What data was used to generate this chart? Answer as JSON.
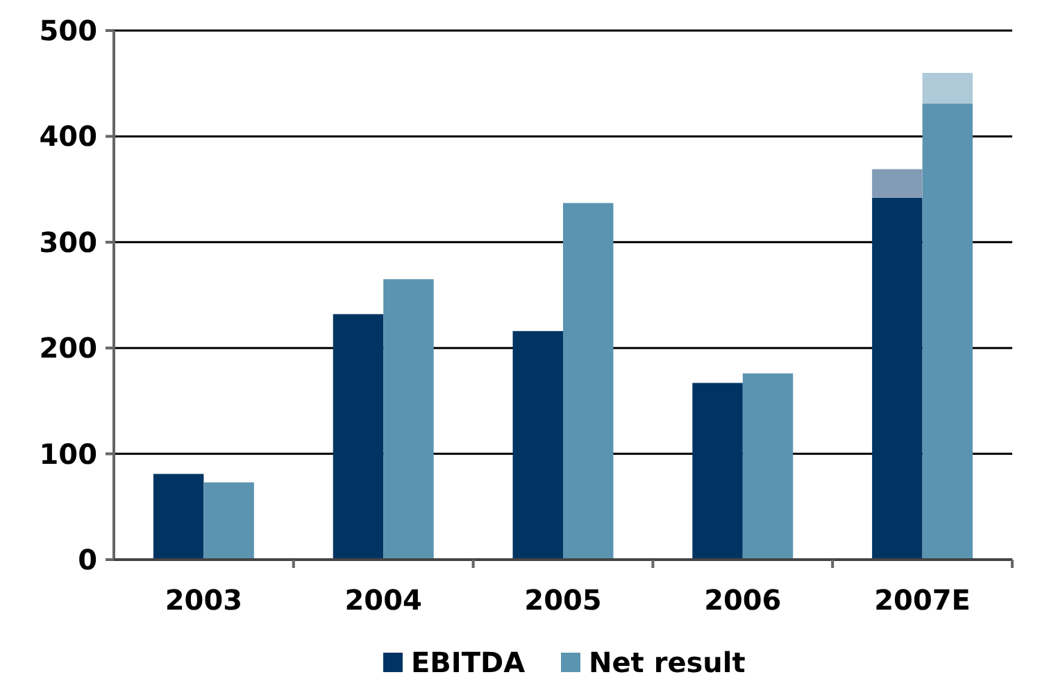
{
  "chart_data": {
    "type": "bar",
    "categories": [
      "2003",
      "2004",
      "2005",
      "2006",
      "2007E"
    ],
    "series": [
      {
        "name": "EBITDA",
        "color": "#003462",
        "values": [
          81,
          232,
          216,
          167,
          342
        ]
      },
      {
        "name": "Net result",
        "color": "#5b94b0",
        "values": [
          73,
          265,
          337,
          176,
          431
        ]
      },
      {
        "color": "#829bb6",
        "values": [
          null,
          null,
          null,
          null,
          27
        ],
        "base": [
          null,
          null,
          null,
          null,
          342
        ]
      },
      {
        "color": "#aecad8",
        "values": [
          null,
          null,
          null,
          null,
          29
        ],
        "base": [
          null,
          null,
          null,
          null,
          431
        ]
      }
    ],
    "ylim": [
      0,
      500
    ],
    "yticks": [
      0,
      100,
      200,
      300,
      400,
      500
    ],
    "grid": "y",
    "legend": "bottom"
  }
}
